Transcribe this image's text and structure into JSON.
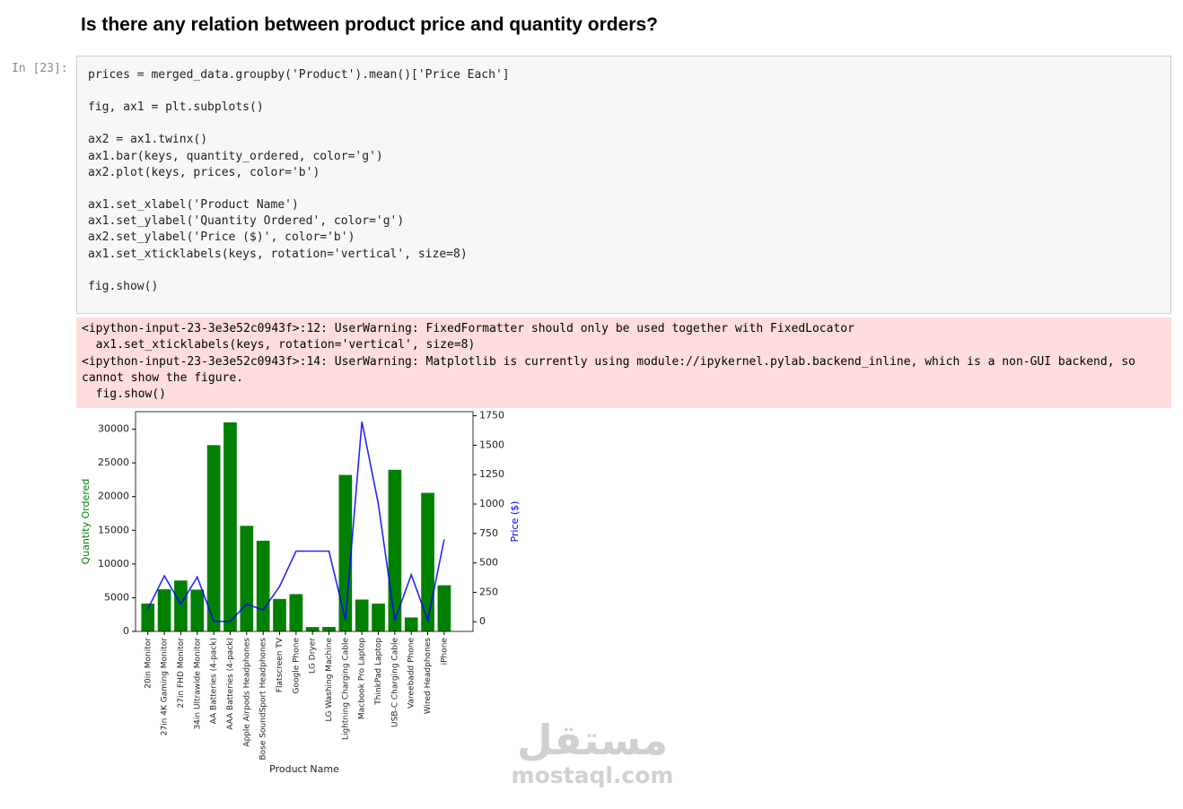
{
  "heading": "Is there any relation between product price and quantity orders?",
  "cell": {
    "prompt": "In [23]:",
    "code_blocks": [
      [
        "prices = merged_data.groupby('Product').mean()['Price Each']"
      ],
      [
        "fig, ax1 = plt.subplots()"
      ],
      [
        "ax2 = ax1.twinx()",
        "ax1.bar(keys, quantity_ordered, color='g')",
        "ax2.plot(keys, prices, color='b')"
      ],
      [
        "ax1.set_xlabel('Product Name')",
        "ax1.set_ylabel('Quantity Ordered', color='g')",
        "ax2.set_ylabel('Price ($)', color='b')",
        "ax1.set_xticklabels(keys, rotation='vertical', size=8)"
      ],
      [
        "fig.show()"
      ]
    ],
    "stderr": [
      "<ipython-input-23-3e3e52c0943f>:12: UserWarning: FixedFormatter should only be used together with FixedLocator",
      "  ax1.set_xticklabels(keys, rotation='vertical', size=8)",
      "<ipython-input-23-3e3e52c0943f>:14: UserWarning: Matplotlib is currently using module://ipykernel.pylab.backend_inline, which is a non-GUI backend, so cannot show the figure.",
      "  fig.show()"
    ]
  },
  "chart_data": {
    "type": "bar_line",
    "x_label": "Product Name",
    "categories": [
      "20in Monitor",
      "27in 4K Gaming Monitor",
      "27in FHD Monitor",
      "34in Ultrawide Monitor",
      "AA Batteries (4-pack)",
      "AAA Batteries (4-pack)",
      "Apple Airpods Headphones",
      "Bose SoundSport Headphones",
      "Flatscreen TV",
      "Google Phone",
      "LG Dryer",
      "LG Washing Machine",
      "Lightning Charging Cable",
      "Macbook Pro Laptop",
      "ThinkPad Laptop",
      "USB-C Charging Cable",
      "Vareebadd Phone",
      "Wired Headphones",
      "iPhone"
    ],
    "series": [
      {
        "name": "Quantity Ordered",
        "color": "#008000",
        "axis": "y",
        "values": [
          4129,
          6244,
          7550,
          6199,
          27635,
          31017,
          15661,
          13457,
          4819,
          5532,
          646,
          666,
          23217,
          4728,
          4130,
          23975,
          2068,
          20557,
          6849
        ]
      },
      {
        "name": "Price ($)",
        "color": "#0000ff",
        "axis": "y2",
        "values": [
          109.99,
          389.99,
          149.99,
          379.99,
          3.84,
          2.99,
          150,
          99.99,
          300,
          600,
          600,
          600,
          14.95,
          1700,
          999.99,
          11.95,
          400,
          11.99,
          700
        ]
      }
    ],
    "ylim": [
      0,
      32600
    ],
    "yticks": [
      0,
      5000,
      10000,
      15000,
      20000,
      25000,
      30000
    ],
    "y2lim": [
      -82,
      1785
    ],
    "y2ticks": [
      0,
      250,
      500,
      750,
      1000,
      1250,
      1500,
      1750
    ]
  },
  "watermark": {
    "arabic": "مستقل",
    "latin": "mostaql.com"
  }
}
